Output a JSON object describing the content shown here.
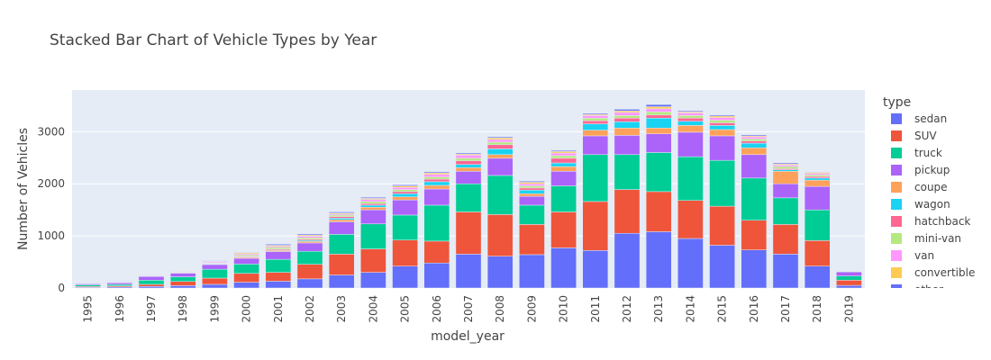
{
  "chart_data": {
    "type": "bar",
    "stacked": true,
    "title": "Stacked Bar Chart of Vehicle Types by Year",
    "xlabel": "model_year",
    "ylabel": "Number of Vehicles",
    "ylim": [
      0,
      3800
    ],
    "y_ticks": [
      0,
      1000,
      2000,
      3000
    ],
    "y_tick_labels": [
      "0",
      "1000",
      "2000",
      "3000"
    ],
    "grid": true,
    "legend_title": "type",
    "legend_placement": "right",
    "categories": [
      "1995",
      "1996",
      "1997",
      "1998",
      "1999",
      "2000",
      "2001",
      "2002",
      "2003",
      "2004",
      "2005",
      "2006",
      "2007",
      "2008",
      "2009",
      "2010",
      "2011",
      "2012",
      "2013",
      "2014",
      "2015",
      "2016",
      "2017",
      "2018",
      "2019"
    ],
    "series": [
      {
        "name": "sedan",
        "color": "#636efa",
        "values": [
          15,
          20,
          30,
          45,
          70,
          110,
          130,
          175,
          250,
          300,
          420,
          480,
          650,
          610,
          640,
          770,
          720,
          1050,
          1080,
          950,
          820,
          730,
          650,
          420,
          50
        ]
      },
      {
        "name": "SUV",
        "color": "#ef553b",
        "values": [
          15,
          20,
          40,
          80,
          120,
          170,
          170,
          280,
          400,
          450,
          500,
          420,
          810,
          800,
          580,
          690,
          940,
          840,
          770,
          730,
          750,
          570,
          570,
          490,
          100
        ]
      },
      {
        "name": "truck",
        "color": "#00cc96",
        "values": [
          30,
          30,
          80,
          90,
          170,
          180,
          250,
          250,
          380,
          480,
          480,
          690,
          540,
          750,
          370,
          500,
          900,
          670,
          750,
          840,
          880,
          810,
          510,
          590,
          80
        ]
      },
      {
        "name": "pickup",
        "color": "#ab63fa",
        "values": [
          20,
          30,
          70,
          70,
          90,
          110,
          150,
          160,
          240,
          270,
          290,
          310,
          240,
          330,
          170,
          280,
          360,
          370,
          360,
          470,
          470,
          450,
          270,
          450,
          80
        ]
      },
      {
        "name": "coupe",
        "color": "#ffa15a",
        "values": [
          5,
          5,
          5,
          10,
          10,
          20,
          20,
          30,
          40,
          50,
          60,
          70,
          70,
          70,
          50,
          90,
          110,
          140,
          110,
          130,
          120,
          130,
          240,
          120,
          5
        ]
      },
      {
        "name": "wagon",
        "color": "#19d3f3",
        "values": [
          5,
          5,
          5,
          5,
          10,
          10,
          10,
          20,
          30,
          40,
          60,
          70,
          60,
          110,
          70,
          70,
          120,
          120,
          190,
          80,
          80,
          90,
          30,
          40,
          5
        ]
      },
      {
        "name": "hatchback",
        "color": "#ff6692",
        "values": [
          5,
          5,
          5,
          10,
          10,
          15,
          20,
          20,
          30,
          30,
          40,
          50,
          70,
          80,
          40,
          90,
          60,
          70,
          60,
          60,
          50,
          40,
          20,
          30,
          5
        ]
      },
      {
        "name": "mini-van",
        "color": "#b6e880",
        "values": [
          5,
          5,
          10,
          10,
          10,
          20,
          30,
          30,
          30,
          40,
          40,
          40,
          50,
          50,
          40,
          50,
          50,
          50,
          60,
          50,
          50,
          40,
          40,
          30,
          5
        ]
      },
      {
        "name": "van",
        "color": "#ff97ff",
        "values": [
          10,
          10,
          10,
          10,
          20,
          20,
          20,
          30,
          20,
          40,
          40,
          50,
          60,
          50,
          40,
          50,
          50,
          60,
          60,
          50,
          50,
          40,
          30,
          30,
          5
        ]
      },
      {
        "name": "convertible",
        "color": "#fecb52",
        "values": [
          5,
          5,
          5,
          10,
          10,
          20,
          20,
          20,
          20,
          20,
          30,
          30,
          20,
          30,
          30,
          30,
          20,
          30,
          40,
          20,
          30,
          20,
          20,
          20,
          5
        ]
      },
      {
        "name": "other",
        "color": "#636efa",
        "values": [
          5,
          5,
          5,
          5,
          10,
          10,
          20,
          20,
          20,
          20,
          20,
          20,
          20,
          20,
          20,
          20,
          20,
          30,
          40,
          20,
          20,
          20,
          20,
          10,
          5
        ]
      }
    ]
  }
}
